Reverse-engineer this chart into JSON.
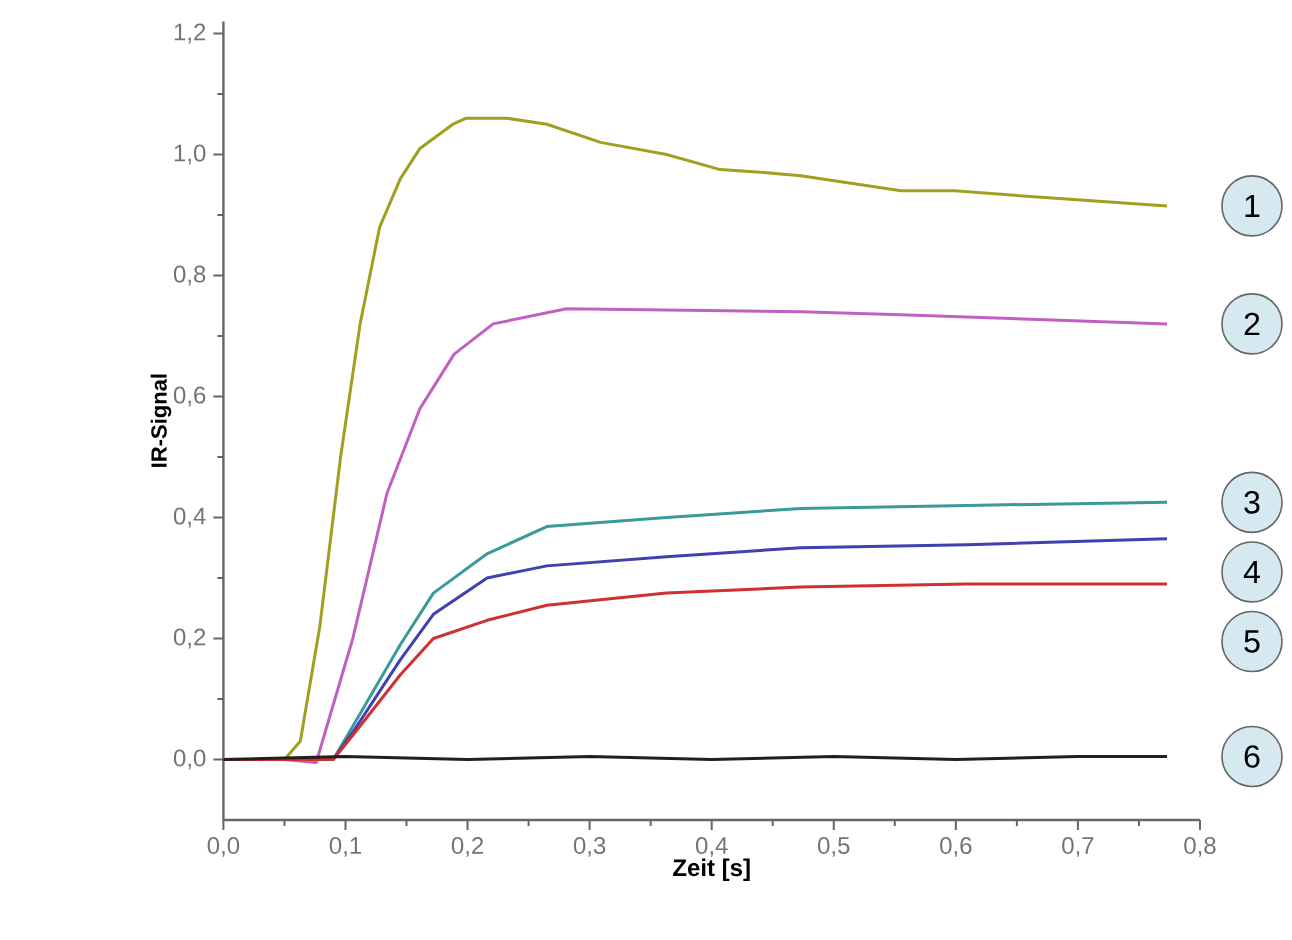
{
  "chart_data": {
    "type": "line",
    "xlabel": "Zeit [s]",
    "ylabel": "IR-Signal",
    "xlim": [
      0,
      0.8
    ],
    "ylim": [
      -0.1,
      1.22
    ],
    "xticks": [
      {
        "value": 0,
        "label": "0,0"
      },
      {
        "value": 0.1,
        "label": "0,1"
      },
      {
        "value": 0.2,
        "label": "0,2"
      },
      {
        "value": 0.3,
        "label": "0,3"
      },
      {
        "value": 0.4,
        "label": "0,4"
      },
      {
        "value": 0.5,
        "label": "0,5"
      },
      {
        "value": 0.6,
        "label": "0,6"
      },
      {
        "value": 0.7,
        "label": "0,7"
      },
      {
        "value": 0.8,
        "label": "0,8"
      }
    ],
    "yticks": [
      {
        "value": 0,
        "label": "0,0"
      },
      {
        "value": 0.2,
        "label": "0,2"
      },
      {
        "value": 0.4,
        "label": "0,4"
      },
      {
        "value": 0.6,
        "label": "0,6"
      },
      {
        "value": 0.8,
        "label": "0,8"
      },
      {
        "value": 1.0,
        "label": "1,0"
      },
      {
        "value": 1.2,
        "label": "1,2"
      }
    ],
    "grid": false,
    "marker": "none",
    "line_style": "solid",
    "series": [
      {
        "name": "1",
        "color": "#a0a020",
        "x": [
          0,
          0.05,
          0.063,
          0.079,
          0.096,
          0.112,
          0.128,
          0.145,
          0.161,
          0.188,
          0.199,
          0.232,
          0.265,
          0.309,
          0.363,
          0.407,
          0.445,
          0.473,
          0.555,
          0.599,
          0.664,
          0.773
        ],
        "values": [
          0,
          0,
          0.03,
          0.22,
          0.5,
          0.72,
          0.88,
          0.96,
          1.01,
          1.05,
          1.06,
          1.06,
          1.05,
          1.02,
          1.0,
          0.975,
          0.97,
          0.965,
          0.94,
          0.94,
          0.93,
          0.915
        ]
      },
      {
        "name": "2",
        "color": "#c060c0",
        "x": [
          0,
          0.05,
          0.076,
          0.106,
          0.134,
          0.161,
          0.189,
          0.221,
          0.281,
          0.473,
          0.555,
          0.773
        ],
        "values": [
          0,
          0,
          -0.005,
          0.2,
          0.44,
          0.58,
          0.67,
          0.72,
          0.745,
          0.74,
          0.735,
          0.72
        ]
      },
      {
        "name": "3",
        "color": "#3a9a9a",
        "x": [
          0,
          0.05,
          0.09,
          0.106,
          0.145,
          0.172,
          0.216,
          0.265,
          0.363,
          0.473,
          0.609,
          0.773
        ],
        "values": [
          0,
          0,
          0,
          0.055,
          0.19,
          0.275,
          0.34,
          0.385,
          0.4,
          0.415,
          0.42,
          0.425
        ]
      },
      {
        "name": "4",
        "color": "#4040b0",
        "x": [
          0,
          0.05,
          0.09,
          0.106,
          0.145,
          0.172,
          0.216,
          0.265,
          0.363,
          0.473,
          0.609,
          0.773
        ],
        "values": [
          0,
          0,
          0,
          0.045,
          0.165,
          0.24,
          0.3,
          0.32,
          0.335,
          0.35,
          0.355,
          0.365
        ]
      },
      {
        "name": "5",
        "color": "#d03030",
        "x": [
          0,
          0.05,
          0.09,
          0.106,
          0.145,
          0.172,
          0.216,
          0.265,
          0.363,
          0.473,
          0.609,
          0.773
        ],
        "values": [
          0,
          0,
          0,
          0.04,
          0.14,
          0.2,
          0.23,
          0.255,
          0.275,
          0.285,
          0.29,
          0.29
        ]
      },
      {
        "name": "6",
        "color": "#202020",
        "x": [
          0,
          0.1,
          0.2,
          0.3,
          0.4,
          0.5,
          0.6,
          0.7,
          0.773
        ],
        "values": [
          0,
          0.005,
          0,
          0.005,
          0,
          0.005,
          0,
          0.005,
          0.005
        ]
      }
    ]
  }
}
